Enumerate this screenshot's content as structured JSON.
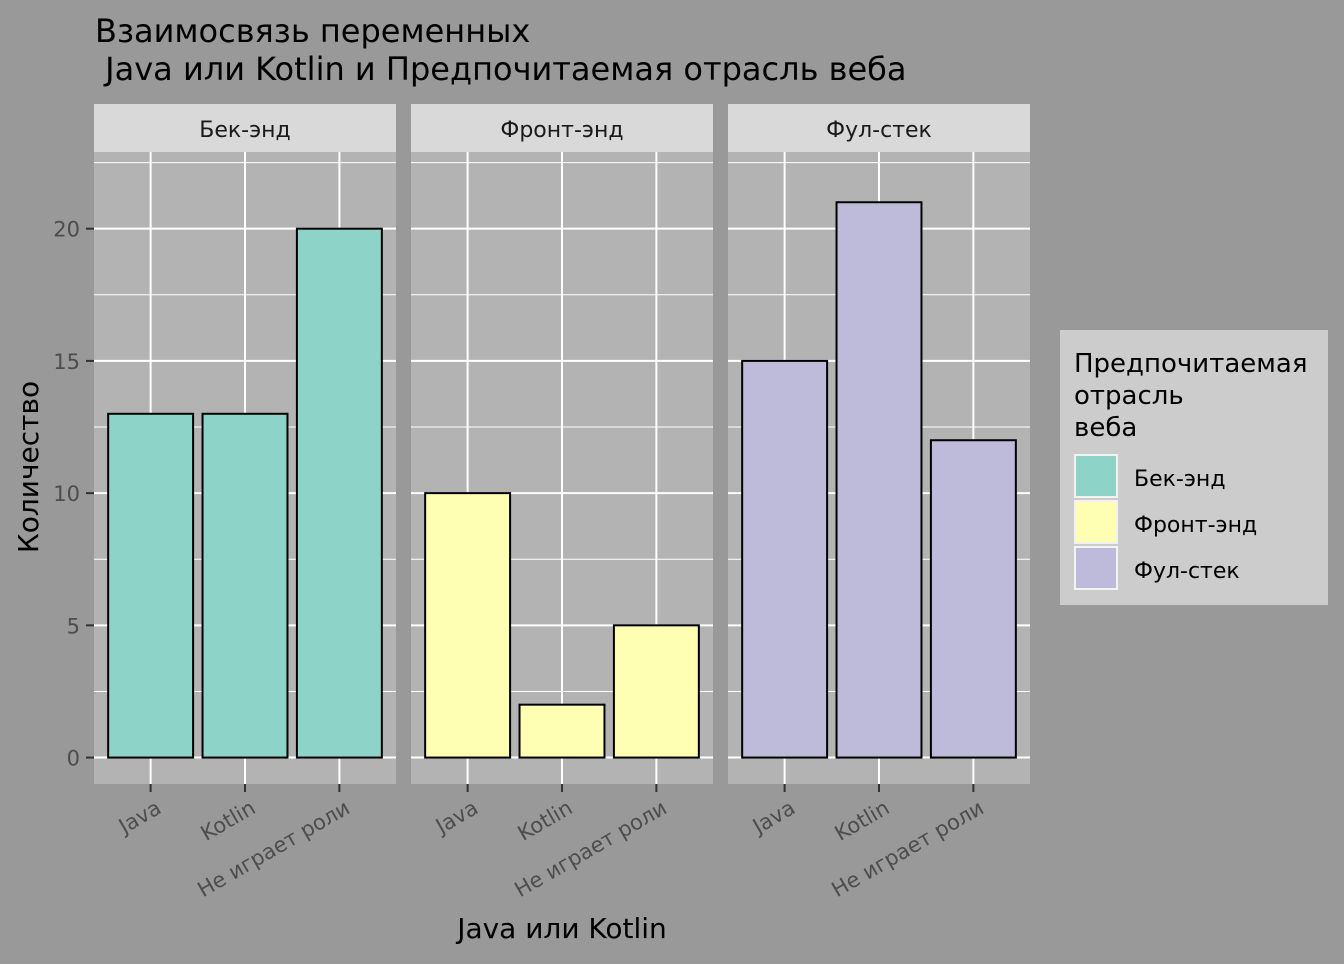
{
  "chart_data": {
    "type": "bar",
    "title_line1": "Взаимосвязь переменных",
    "title_line2": " Java или Kotlin и Предпочитаемая отрасль веба",
    "xlabel": "Java или Kotlin",
    "ylabel": "Количество",
    "categories": [
      "Java",
      "Kotlin",
      "Не играет роли"
    ],
    "ylim": [
      0,
      22
    ],
    "yticks": [
      0,
      5,
      10,
      15,
      20
    ],
    "grid": true,
    "legend_position": "right",
    "legend": {
      "title_lines": [
        "Предпочитаемая",
        "отрасль",
        "веба"
      ],
      "entries": [
        "Бек-энд",
        "Фронт-энд",
        "Фул-стек"
      ]
    },
    "facets": [
      {
        "name": "Бек-энд",
        "color": "#8DD3C7",
        "values": [
          13,
          13,
          20
        ]
      },
      {
        "name": "Фронт-энд",
        "color": "#FFFFB3",
        "values": [
          10,
          2,
          5
        ]
      },
      {
        "name": "Фул-стек",
        "color": "#BEBADA",
        "values": [
          15,
          21,
          12
        ]
      }
    ]
  },
  "colors": {
    "background": "#999999",
    "panel": "#B3B3B3",
    "strip": "#D9D9D9",
    "legend_box": "#CCCCCC",
    "grid": "#FFFFFF",
    "bar_outline": "#000000",
    "tick_text": "#4D4D4D"
  }
}
